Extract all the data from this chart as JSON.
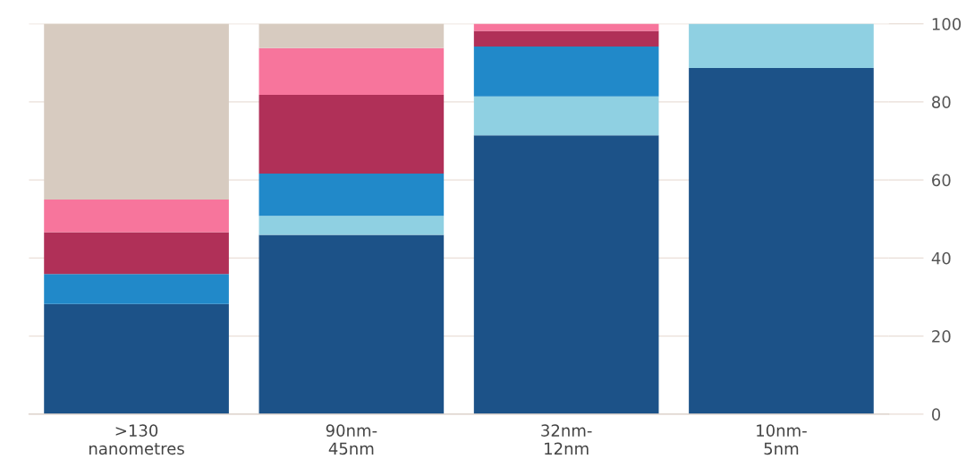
{
  "chart_data": {
    "type": "bar",
    "stacked": true,
    "categories": [
      ">130\nnanometres",
      "90nm-\n45nm",
      "32nm-\n12nm",
      "10nm-\n5nm"
    ],
    "series": [
      {
        "color": "#1c5288",
        "values": [
          28.2,
          45.9,
          71.4,
          88.7
        ]
      },
      {
        "color": "#8fd0e2",
        "values": [
          0,
          4.9,
          10.0,
          11.3
        ]
      },
      {
        "color": "#2189c9",
        "values": [
          7.7,
          10.8,
          12.8,
          0
        ]
      },
      {
        "color": "#b03058",
        "values": [
          10.7,
          20.2,
          4.0,
          0
        ]
      },
      {
        "color": "#f7759c",
        "values": [
          8.4,
          12.0,
          1.8,
          0
        ]
      },
      {
        "color": "#d7cbc0",
        "values": [
          45.0,
          6.2,
          0,
          0
        ]
      }
    ],
    "ylim": [
      0,
      100
    ],
    "yticks": [
      0,
      20,
      40,
      60,
      80,
      100
    ],
    "grid": "y"
  }
}
